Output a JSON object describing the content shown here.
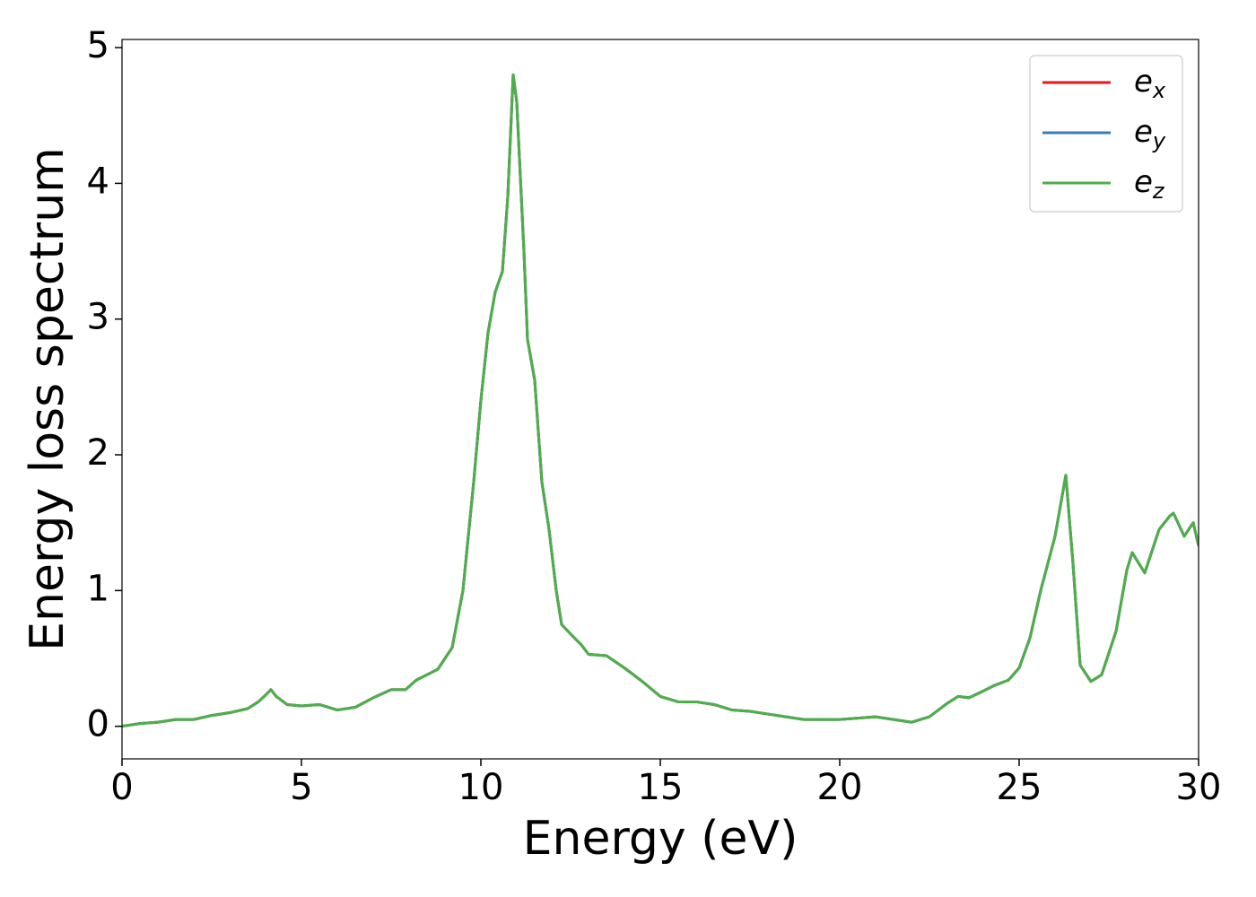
{
  "chart_data": {
    "type": "line",
    "x_label": "Energy (eV)",
    "y_label": "Energy loss spectrum",
    "x": [
      0,
      0.5,
      1.0,
      1.5,
      2.0,
      2.5,
      3.0,
      3.5,
      3.8,
      4.0,
      4.15,
      4.3,
      4.6,
      5.0,
      5.5,
      6.0,
      6.5,
      7.0,
      7.5,
      7.9,
      8.2,
      8.5,
      8.8,
      9.2,
      9.5,
      9.8,
      10.0,
      10.2,
      10.4,
      10.6,
      10.75,
      10.9,
      11.0,
      11.2,
      11.3,
      11.5,
      11.7,
      11.9,
      12.1,
      12.25,
      12.5,
      12.8,
      13.0,
      13.5,
      14.0,
      14.5,
      15.0,
      15.5,
      16.0,
      16.5,
      17.0,
      17.5,
      18.0,
      18.5,
      19.0,
      19.5,
      20.0,
      20.5,
      21.0,
      21.5,
      22.0,
      22.5,
      23.0,
      23.3,
      23.6,
      24.0,
      24.3,
      24.7,
      25.0,
      25.3,
      25.6,
      26.0,
      26.3,
      26.5,
      26.7,
      27.0,
      27.3,
      27.7,
      28.0,
      28.15,
      28.5,
      28.9,
      29.2,
      29.3,
      29.6,
      29.85,
      30.0
    ],
    "series": [
      {
        "name": "ex",
        "color": "#e41a1c",
        "values": [
          0.0,
          0.02,
          0.03,
          0.05,
          0.05,
          0.08,
          0.1,
          0.13,
          0.18,
          0.23,
          0.27,
          0.22,
          0.16,
          0.15,
          0.16,
          0.12,
          0.14,
          0.21,
          0.27,
          0.27,
          0.34,
          0.38,
          0.42,
          0.58,
          1.0,
          1.8,
          2.4,
          2.9,
          3.2,
          3.35,
          3.9,
          4.8,
          4.6,
          3.5,
          2.85,
          2.55,
          1.8,
          1.45,
          1.0,
          0.75,
          0.68,
          0.6,
          0.53,
          0.52,
          0.43,
          0.33,
          0.22,
          0.18,
          0.18,
          0.16,
          0.12,
          0.11,
          0.09,
          0.07,
          0.05,
          0.05,
          0.05,
          0.06,
          0.07,
          0.05,
          0.03,
          0.07,
          0.17,
          0.22,
          0.21,
          0.26,
          0.3,
          0.34,
          0.43,
          0.65,
          1.0,
          1.4,
          1.85,
          1.2,
          0.45,
          0.33,
          0.38,
          0.7,
          1.15,
          1.28,
          1.13,
          1.45,
          1.55,
          1.57,
          1.4,
          1.5,
          1.33
        ]
      },
      {
        "name": "ey",
        "color": "#377eb8",
        "values": [
          0.0,
          0.02,
          0.03,
          0.05,
          0.05,
          0.08,
          0.1,
          0.13,
          0.18,
          0.23,
          0.27,
          0.22,
          0.16,
          0.15,
          0.16,
          0.12,
          0.14,
          0.21,
          0.27,
          0.27,
          0.34,
          0.38,
          0.42,
          0.58,
          1.0,
          1.8,
          2.4,
          2.9,
          3.2,
          3.35,
          3.9,
          4.8,
          4.6,
          3.5,
          2.85,
          2.55,
          1.8,
          1.45,
          1.0,
          0.75,
          0.68,
          0.6,
          0.53,
          0.52,
          0.43,
          0.33,
          0.22,
          0.18,
          0.18,
          0.16,
          0.12,
          0.11,
          0.09,
          0.07,
          0.05,
          0.05,
          0.05,
          0.06,
          0.07,
          0.05,
          0.03,
          0.07,
          0.17,
          0.22,
          0.21,
          0.26,
          0.3,
          0.34,
          0.43,
          0.65,
          1.0,
          1.4,
          1.85,
          1.2,
          0.45,
          0.33,
          0.38,
          0.7,
          1.15,
          1.28,
          1.13,
          1.45,
          1.55,
          1.57,
          1.4,
          1.5,
          1.33
        ]
      },
      {
        "name": "ez",
        "color": "#4daf4a",
        "values": [
          0.0,
          0.02,
          0.03,
          0.05,
          0.05,
          0.08,
          0.1,
          0.13,
          0.18,
          0.23,
          0.27,
          0.22,
          0.16,
          0.15,
          0.16,
          0.12,
          0.14,
          0.21,
          0.27,
          0.27,
          0.34,
          0.38,
          0.42,
          0.58,
          1.0,
          1.8,
          2.4,
          2.9,
          3.2,
          3.35,
          3.9,
          4.8,
          4.6,
          3.5,
          2.85,
          2.55,
          1.8,
          1.45,
          1.0,
          0.75,
          0.68,
          0.6,
          0.53,
          0.52,
          0.43,
          0.33,
          0.22,
          0.18,
          0.18,
          0.16,
          0.12,
          0.11,
          0.09,
          0.07,
          0.05,
          0.05,
          0.05,
          0.06,
          0.07,
          0.05,
          0.03,
          0.07,
          0.17,
          0.22,
          0.21,
          0.26,
          0.3,
          0.34,
          0.43,
          0.65,
          1.0,
          1.4,
          1.85,
          1.2,
          0.45,
          0.33,
          0.38,
          0.7,
          1.15,
          1.28,
          1.13,
          1.45,
          1.55,
          1.57,
          1.4,
          1.5,
          1.33
        ]
      }
    ],
    "xlim": [
      0,
      30
    ],
    "xticks": [
      0,
      5,
      10,
      15,
      20,
      25,
      30
    ],
    "ylim": [
      -0.24,
      5.06
    ],
    "yticks": [
      0,
      1,
      2,
      3,
      4,
      5
    ],
    "grid": false,
    "legend": "upper right"
  }
}
